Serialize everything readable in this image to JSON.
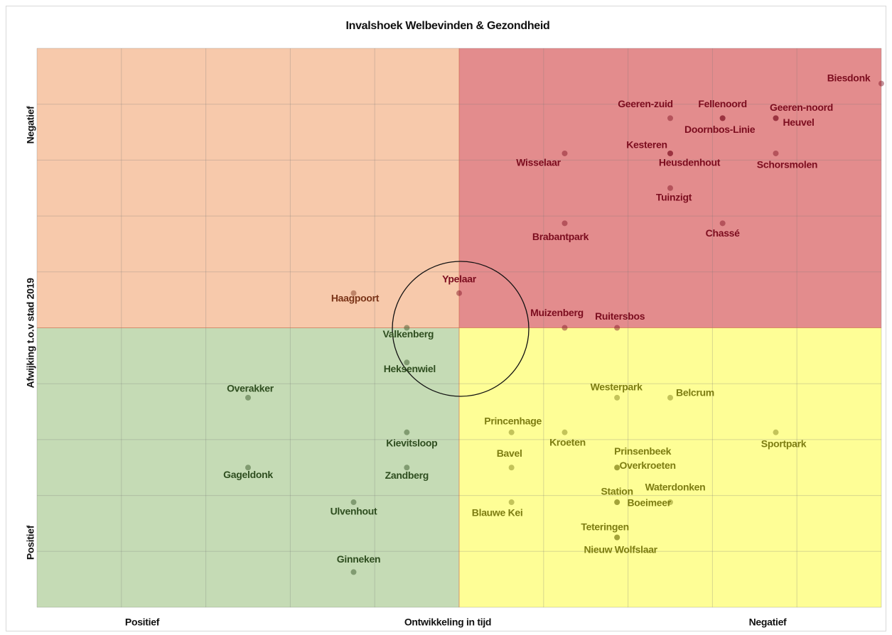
{
  "chart_data": {
    "type": "scatter",
    "title": "Invalshoek Welbevinden & Gezondheid",
    "xlabel": "Ontwikkeling in tijd",
    "ylabel": "Afwijking t.o.v stad 2019",
    "x_end_labels": [
      "Positief",
      "Negatief"
    ],
    "y_end_labels": [
      "Positief",
      "Negatief"
    ],
    "xlim": [
      -5,
      5
    ],
    "ylim": [
      -5,
      5
    ],
    "xticks": [
      -5,
      -4,
      -3,
      -2,
      -1,
      0,
      1,
      2,
      3,
      4,
      5
    ],
    "yticks": [
      -5,
      -4,
      -3,
      -2,
      -1,
      0,
      1,
      2,
      3,
      4,
      5
    ],
    "tick_labels": false,
    "grid": true,
    "quadrant_colors": {
      "top_left": "#f7c9ab",
      "top_right": "#e38c8d",
      "bottom_left": "#c5dbb5",
      "bottom_right": "#fefe96"
    },
    "label_colors": {
      "top_left": "#7a3418",
      "top_right": "#7c0d1f",
      "bottom_left": "#2f4e20",
      "bottom_right": "#7d7d12"
    },
    "labels": [
      "Biesdonk",
      "Geeren-zuid",
      "Fellenoord",
      "Geeren-noord",
      "Heuvel",
      "Doornbos-Linie",
      "Kesteren",
      "Heusdenhout",
      "Wisselaar",
      "Schorsmolen",
      "Tuinzigt",
      "Brabantpark",
      "Chassé",
      "Ypelaar",
      "Haagpoort",
      "Muizenberg",
      "Ruitersbos",
      "Valkenberg",
      "Heksenwiel",
      "Overakker",
      "Westerpark",
      "Belcrum",
      "Princenhage",
      "Kroeten",
      "Sportpark",
      "Kievitsloop",
      "Bavel",
      "Prinsenbeek",
      "Overkroeten",
      "Gageldonk",
      "Zandberg",
      "Station",
      "Waterdonken",
      "Boeimeer",
      "Ulvenhout",
      "Blauwe Kei",
      "Teteringen",
      "Nieuw Wolfslaar",
      "Ginneken"
    ],
    "x": [
      5,
      2.5,
      3.12,
      3.75,
      3.75,
      3.12,
      2.5,
      2.5,
      1.25,
      3.75,
      2.5,
      1.25,
      3.12,
      0,
      -1.25,
      1.25,
      1.87,
      -0.62,
      -0.62,
      -2.5,
      1.87,
      2.5,
      0.62,
      1.25,
      3.75,
      -0.62,
      0.62,
      1.87,
      1.87,
      -2.5,
      -0.62,
      1.87,
      2.5,
      1.87,
      -1.25,
      0.62,
      1.87,
      1.87,
      -1.25
    ],
    "y": [
      4.37,
      3.75,
      3.75,
      3.75,
      3.75,
      3.75,
      3.12,
      3.12,
      3.12,
      3.12,
      2.5,
      1.87,
      1.87,
      0.62,
      0.62,
      0,
      0,
      0,
      -0.62,
      -1.25,
      -1.25,
      -1.25,
      -1.87,
      -1.87,
      -1.87,
      -1.87,
      -2.5,
      -2.5,
      -2.5,
      -2.5,
      -2.5,
      -3.12,
      -3.12,
      -3.12,
      -3.12,
      -3.12,
      -3.75,
      -3.75,
      -4.37
    ]
  }
}
